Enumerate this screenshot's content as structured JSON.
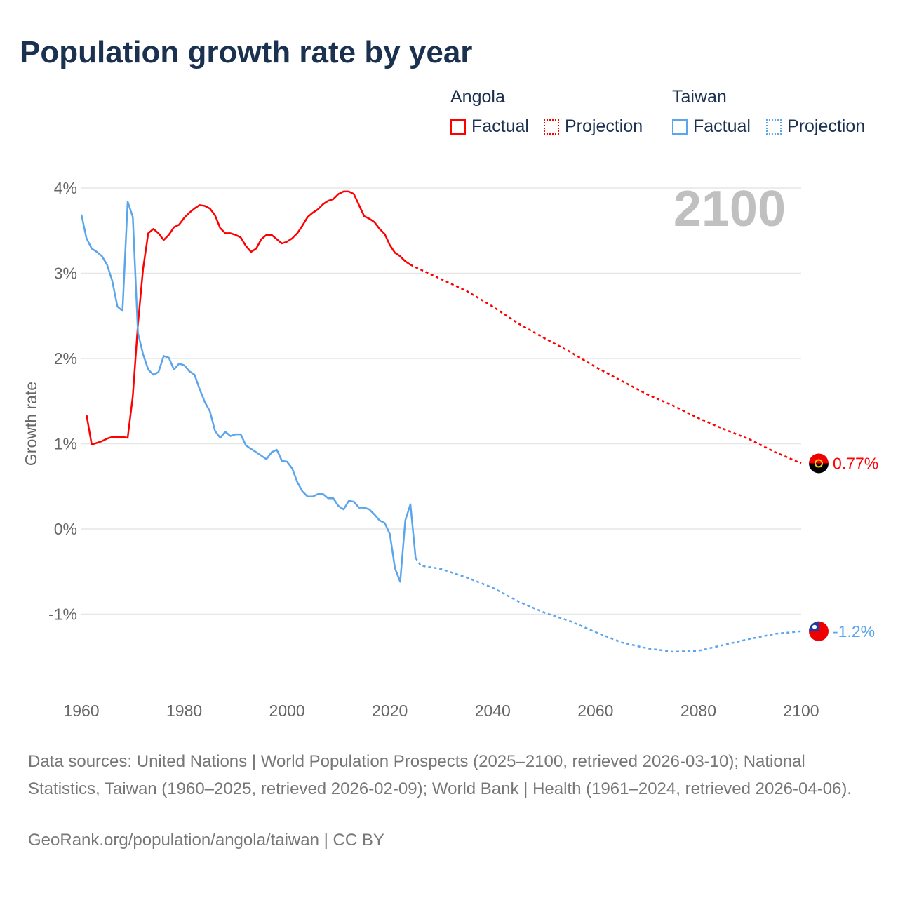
{
  "title": "Population growth rate by year",
  "legend": {
    "groups": [
      {
        "name": "Angola",
        "color": "#ff0000",
        "factual": "Factual",
        "projection": "Projection"
      },
      {
        "name": "Taiwan",
        "color": "#5aa5ec",
        "factual": "Factual",
        "projection": "Projection"
      }
    ]
  },
  "chart_data": {
    "type": "line",
    "title": "Population growth rate by year",
    "ylabel": "Growth rate",
    "xlabel": "",
    "year_watermark": "2100",
    "xlim": [
      1960,
      2100
    ],
    "ylim": [
      -2,
      4
    ],
    "x_ticks": [
      "1960",
      "1980",
      "2000",
      "2020",
      "2040",
      "2060",
      "2080",
      "2100"
    ],
    "y_ticks": [
      {
        "v": 4,
        "label": "4%"
      },
      {
        "v": 3,
        "label": "3%"
      },
      {
        "v": 2,
        "label": "2%"
      },
      {
        "v": 1,
        "label": "1%"
      },
      {
        "v": 0,
        "label": "0%"
      },
      {
        "v": -1,
        "label": "-1%"
      }
    ],
    "grid": true,
    "series": [
      {
        "name": "Angola",
        "color": "#ff0000",
        "end_label": "0.77%",
        "factual": {
          "x": [
            1961,
            1962,
            1963,
            1964,
            1965,
            1966,
            1967,
            1968,
            1969,
            1970,
            1971,
            1972,
            1973,
            1974,
            1975,
            1976,
            1977,
            1978,
            1979,
            1980,
            1981,
            1982,
            1983,
            1984,
            1985,
            1986,
            1987,
            1988,
            1989,
            1990,
            1991,
            1992,
            1993,
            1994,
            1995,
            1996,
            1997,
            1998,
            1999,
            2000,
            2001,
            2002,
            2003,
            2004,
            2005,
            2006,
            2007,
            2008,
            2009,
            2010,
            2011,
            2012,
            2013,
            2014,
            2015,
            2016,
            2017,
            2018,
            2019,
            2020,
            2021,
            2022,
            2023,
            2024
          ],
          "y": [
            1.34,
            0.99,
            1.01,
            1.03,
            1.06,
            1.08,
            1.08,
            1.08,
            1.07,
            1.56,
            2.4,
            3.05,
            3.47,
            3.52,
            3.47,
            3.39,
            3.45,
            3.54,
            3.57,
            3.65,
            3.71,
            3.76,
            3.8,
            3.79,
            3.76,
            3.68,
            3.53,
            3.47,
            3.47,
            3.45,
            3.42,
            3.32,
            3.25,
            3.29,
            3.4,
            3.45,
            3.45,
            3.4,
            3.35,
            3.37,
            3.41,
            3.47,
            3.56,
            3.66,
            3.71,
            3.75,
            3.81,
            3.85,
            3.87,
            3.93,
            3.96,
            3.96,
            3.93,
            3.8,
            3.67,
            3.64,
            3.6,
            3.52,
            3.46,
            3.33,
            3.24,
            3.2,
            3.14,
            3.1
          ]
        },
        "projection": {
          "x": [
            2024,
            2025,
            2030,
            2035,
            2040,
            2045,
            2050,
            2055,
            2060,
            2065,
            2070,
            2075,
            2080,
            2085,
            2090,
            2095,
            2100
          ],
          "y": [
            3.1,
            3.07,
            2.93,
            2.79,
            2.61,
            2.41,
            2.24,
            2.08,
            1.9,
            1.74,
            1.58,
            1.45,
            1.3,
            1.17,
            1.05,
            0.9,
            0.77
          ]
        }
      },
      {
        "name": "Taiwan",
        "color": "#5aa5ec",
        "end_label": "-1.2%",
        "factual": {
          "x": [
            1960,
            1961,
            1962,
            1963,
            1964,
            1965,
            1966,
            1967,
            1968,
            1969,
            1970,
            1971,
            1972,
            1973,
            1974,
            1975,
            1976,
            1977,
            1978,
            1979,
            1980,
            1981,
            1982,
            1983,
            1984,
            1985,
            1986,
            1987,
            1988,
            1989,
            1990,
            1991,
            1992,
            1993,
            1994,
            1995,
            1996,
            1997,
            1998,
            1999,
            2000,
            2001,
            2002,
            2003,
            2004,
            2005,
            2006,
            2007,
            2008,
            2009,
            2010,
            2011,
            2012,
            2013,
            2014,
            2015,
            2016,
            2017,
            2018,
            2019,
            2020,
            2021,
            2022,
            2023,
            2024,
            2025
          ],
          "y": [
            3.69,
            3.41,
            3.29,
            3.25,
            3.2,
            3.1,
            2.91,
            2.61,
            2.56,
            3.84,
            3.66,
            2.3,
            2.05,
            1.87,
            1.81,
            1.84,
            2.03,
            2.01,
            1.87,
            1.94,
            1.92,
            1.85,
            1.81,
            1.64,
            1.49,
            1.38,
            1.15,
            1.07,
            1.14,
            1.09,
            1.11,
            1.11,
            0.98,
            0.94,
            0.9,
            0.86,
            0.82,
            0.9,
            0.93,
            0.8,
            0.79,
            0.71,
            0.55,
            0.44,
            0.38,
            0.38,
            0.41,
            0.41,
            0.36,
            0.36,
            0.27,
            0.23,
            0.33,
            0.32,
            0.25,
            0.25,
            0.23,
            0.17,
            0.1,
            0.07,
            -0.06,
            -0.46,
            -0.62,
            0.1,
            0.29,
            -0.34
          ]
        },
        "projection": {
          "x": [
            2025,
            2026,
            2030,
            2035,
            2040,
            2045,
            2050,
            2055,
            2060,
            2065,
            2070,
            2075,
            2080,
            2085,
            2090,
            2095,
            2100
          ],
          "y": [
            -0.34,
            -0.43,
            -0.47,
            -0.57,
            -0.69,
            -0.85,
            -0.98,
            -1.08,
            -1.21,
            -1.33,
            -1.4,
            -1.44,
            -1.43,
            -1.36,
            -1.29,
            -1.23,
            -1.2
          ]
        }
      }
    ]
  },
  "footer": {
    "sources": "Data sources: United Nations | World Population Prospects (2025–2100, retrieved 2026-03-10); National Statistics, Taiwan (1960–2025, retrieved 2026-02-09); World Bank | Health (1961–2024, retrieved 2026-04-06).",
    "credit": "GeoRank.org/population/angola/taiwan | CC BY"
  }
}
